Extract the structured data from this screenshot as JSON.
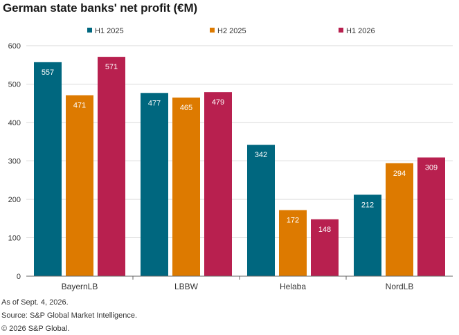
{
  "title": "German state banks' net profit (€M)",
  "footer": {
    "line1": "As of Sept. 4, 2026.",
    "line2": "Source: S&P Global Market Intelligence.",
    "line3": "© 2026 S&P Global."
  },
  "chart_data": {
    "type": "bar",
    "title": "German state banks' net profit (€M)",
    "xlabel": "",
    "ylabel": "",
    "categories": [
      "BayernLB",
      "LBBW",
      "Helaba",
      "NordLB"
    ],
    "series": [
      {
        "name": "H1 2025",
        "color": "#00677f",
        "values": [
          557,
          477,
          342,
          212
        ]
      },
      {
        "name": "H2 2025",
        "color": "#dd7a00",
        "values": [
          471,
          465,
          172,
          294
        ]
      },
      {
        "name": "H1 2026",
        "color": "#b8204f",
        "values": [
          571,
          479,
          148,
          309
        ]
      }
    ],
    "ylim": [
      0,
      600
    ],
    "yticks": [
      0,
      100,
      200,
      300,
      400,
      500,
      600
    ],
    "grid": true,
    "legend_position": "top-center"
  }
}
